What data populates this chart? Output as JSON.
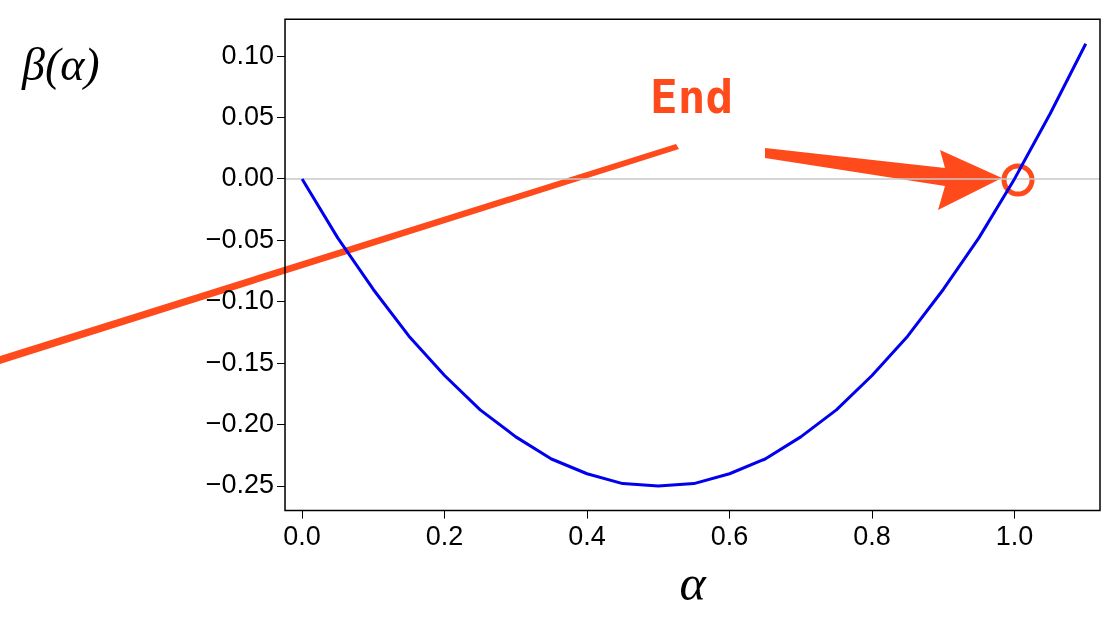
{
  "chart_data": {
    "type": "line",
    "xlabel": "α",
    "ylabel": "β(α)",
    "x": [
      0,
      0.05,
      0.1,
      0.15,
      0.2,
      0.25,
      0.3,
      0.35,
      0.4,
      0.45,
      0.5,
      0.55,
      0.6,
      0.65,
      0.7,
      0.75,
      0.8,
      0.85,
      0.9,
      0.95,
      1.0,
      1.05,
      1.1
    ],
    "series": [
      {
        "color": "#0000ee",
        "values": [
          0,
          -0.048,
          -0.09,
          -0.128,
          -0.16,
          -0.188,
          -0.21,
          -0.228,
          -0.24,
          -0.248,
          -0.25,
          -0.248,
          -0.24,
          -0.228,
          -0.21,
          -0.188,
          -0.16,
          -0.128,
          -0.09,
          -0.048,
          0,
          0.053,
          0.11
        ]
      }
    ],
    "xlim": [
      -0.024,
      1.12
    ],
    "ylim": [
      -0.27,
      0.13
    ],
    "xticks": [
      {
        "value": 0,
        "label": "0.0"
      },
      {
        "value": 0.2,
        "label": "0.2"
      },
      {
        "value": 0.4,
        "label": "0.4"
      },
      {
        "value": 0.6,
        "label": "0.6"
      },
      {
        "value": 0.8,
        "label": "0.8"
      },
      {
        "value": 1.0,
        "label": "1.0"
      }
    ],
    "yticks": [
      {
        "value": -0.25,
        "label": "−0.25"
      },
      {
        "value": -0.2,
        "label": "−0.20"
      },
      {
        "value": -0.15,
        "label": "−0.15"
      },
      {
        "value": -0.1,
        "label": "−0.10"
      },
      {
        "value": -0.05,
        "label": "−0.05"
      },
      {
        "value": 0,
        "label": "0.00"
      },
      {
        "value": 0.05,
        "label": "0.05"
      },
      {
        "value": 0.1,
        "label": "0.10"
      }
    ],
    "ref_lines": [
      {
        "axis": "y",
        "value": 0,
        "color": "#c8c8c8"
      }
    ],
    "annotations": [
      "End"
    ],
    "grid": false,
    "legend": false,
    "marker": "none",
    "line_style": "solid"
  }
}
